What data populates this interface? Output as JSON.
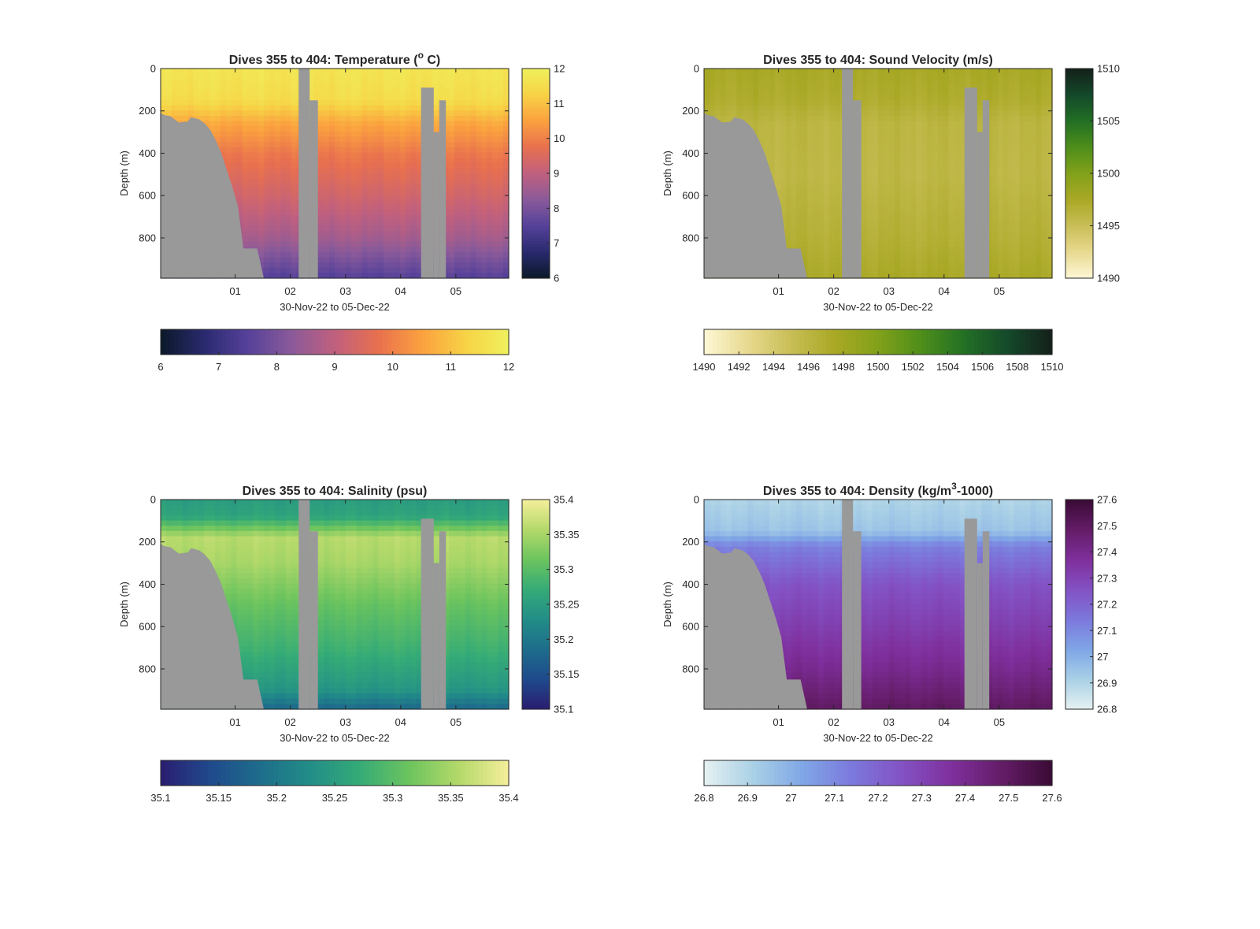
{
  "chart_data": [
    {
      "type": "heatmap",
      "title": "Dives 355 to 404: Temperature (",
      "title_unit": "o",
      "title_suffix": " C)",
      "title_unit_style": "superscript",
      "xlabel": "30-Nov-22 to 05-Dec-22",
      "ylabel": "Depth (m)",
      "xticklabels": [
        "01",
        "02",
        "03",
        "04",
        "05"
      ],
      "xlim": [
        "30-Nov-22 15:36",
        "05-Dec-22 23:00"
      ],
      "xticks": [
        "01-Dec-22",
        "02-Dec-22",
        "03-Dec-22",
        "04-Dec-22",
        "05-Dec-22"
      ],
      "yticks": [
        0,
        200,
        400,
        600,
        800
      ],
      "ylim": [
        0,
        990
      ],
      "y_reversed": true,
      "colormap": [
        "#0b1928",
        "#2a2a6f",
        "#55419a",
        "#8a5a9a",
        "#c0607e",
        "#e8704f",
        "#fba13f",
        "#f7d245",
        "#eff15d"
      ],
      "clim": [
        6,
        12
      ],
      "right_colorbar_ticks": [
        "6",
        "7",
        "8",
        "9",
        "10",
        "11",
        "12"
      ],
      "bottom_colorbar_ticks": [
        "6",
        "7",
        "8",
        "9",
        "10",
        "11",
        "12"
      ],
      "field": {
        "surface_layer": {
          "depth": [
            0,
            150
          ],
          "value": 11.7
        },
        "gradient": [
          [
            0,
            11.7
          ],
          [
            150,
            11.5
          ],
          [
            260,
            10.6
          ],
          [
            400,
            9.9
          ],
          [
            600,
            9.3
          ],
          [
            800,
            8.6
          ],
          [
            990,
            7.5
          ]
        ]
      },
      "no_data_color": "#999999"
    },
    {
      "type": "heatmap",
      "title": "Dives 355 to 404: Sound Velocity (m/s)",
      "xlabel": "30-Nov-22 to 05-Dec-22",
      "ylabel": "Depth (m)",
      "xticklabels": [
        "01",
        "02",
        "03",
        "04",
        "05"
      ],
      "xlim": [
        "30-Nov-22 15:36",
        "05-Dec-22 23:00"
      ],
      "xticks": [
        "01-Dec-22",
        "02-Dec-22",
        "03-Dec-22",
        "04-Dec-22",
        "05-Dec-22"
      ],
      "yticks": [
        0,
        200,
        400,
        600,
        800
      ],
      "ylim": [
        0,
        990
      ],
      "y_reversed": true,
      "colormap": [
        "#fdf8d6",
        "#e8d98f",
        "#c8be56",
        "#a9a825",
        "#82a11a",
        "#4d8e1a",
        "#226f25",
        "#14482a",
        "#14201a"
      ],
      "clim": [
        1490,
        1510
      ],
      "right_colorbar_ticks": [
        "1490",
        "1495",
        "1500",
        "1505",
        "1510"
      ],
      "bottom_colorbar_ticks": [
        "1490",
        "1492",
        "1494",
        "1496",
        "1498",
        "1500",
        "1502",
        "1504",
        "1506",
        "1508",
        "1510"
      ],
      "field": {
        "gradient": [
          [
            0,
            1497.5
          ],
          [
            150,
            1497.0
          ],
          [
            260,
            1496.0
          ],
          [
            500,
            1495.8
          ],
          [
            800,
            1496.6
          ],
          [
            990,
            1497.4
          ]
        ]
      },
      "no_data_color": "#999999"
    },
    {
      "type": "heatmap",
      "title": "Dives 355 to 404: Salinity (psu)",
      "xlabel": "30-Nov-22 to 05-Dec-22",
      "ylabel": "Depth (m)",
      "xticklabels": [
        "01",
        "02",
        "03",
        "04",
        "05"
      ],
      "xlim": [
        "30-Nov-22 15:36",
        "05-Dec-22 23:00"
      ],
      "xticks": [
        "01-Dec-22",
        "02-Dec-22",
        "03-Dec-22",
        "04-Dec-22",
        "05-Dec-22"
      ],
      "yticks": [
        0,
        200,
        400,
        600,
        800
      ],
      "ylim": [
        0,
        990
      ],
      "y_reversed": true,
      "colormap": [
        "#2a1d70",
        "#1f4a8c",
        "#1e6d8b",
        "#228d88",
        "#35ab77",
        "#6cc45e",
        "#b4d96a",
        "#f5ef9a"
      ],
      "clim": [
        35.1,
        35.4
      ],
      "right_colorbar_ticks": [
        "35.1",
        "35.15",
        "35.2",
        "35.25",
        "35.3",
        "35.35",
        "35.4"
      ],
      "bottom_colorbar_ticks": [
        "35.1",
        "35.15",
        "35.2",
        "35.25",
        "35.3",
        "35.35",
        "35.4"
      ],
      "field": {
        "gradient": [
          [
            0,
            35.25
          ],
          [
            80,
            35.26
          ],
          [
            180,
            35.36
          ],
          [
            300,
            35.35
          ],
          [
            500,
            35.31
          ],
          [
            700,
            35.28
          ],
          [
            900,
            35.24
          ],
          [
            990,
            35.18
          ]
        ]
      },
      "no_data_color": "#999999"
    },
    {
      "type": "heatmap",
      "title": "Dives 355 to 404: Density (kg/m",
      "title_unit": "3",
      "title_suffix": "-1000)",
      "title_unit_style": "superscript",
      "xlabel": "30-Nov-22 to 05-Dec-22",
      "ylabel": "Depth (m)",
      "xticklabels": [
        "01",
        "02",
        "03",
        "04",
        "05"
      ],
      "xlim": [
        "30-Nov-22 15:36",
        "05-Dec-22 23:00"
      ],
      "xticks": [
        "01-Dec-22",
        "02-Dec-22",
        "03-Dec-22",
        "04-Dec-22",
        "05-Dec-22"
      ],
      "yticks": [
        0,
        200,
        400,
        600,
        800
      ],
      "ylim": [
        0,
        990
      ],
      "y_reversed": true,
      "colormap": [
        "#e6f1f2",
        "#a9d0e6",
        "#7fa6e6",
        "#7c78dc",
        "#8351c3",
        "#7f2f9c",
        "#631c66",
        "#3a0b35"
      ],
      "clim": [
        26.8,
        27.6
      ],
      "right_colorbar_ticks": [
        "26.8",
        "26.9",
        "27",
        "27.1",
        "27.2",
        "27.3",
        "27.4",
        "27.5",
        "27.6"
      ],
      "bottom_colorbar_ticks": [
        "26.8",
        "26.9",
        "27",
        "27.1",
        "27.2",
        "27.3",
        "27.4",
        "27.5",
        "27.6"
      ],
      "field": {
        "gradient": [
          [
            0,
            26.9
          ],
          [
            150,
            26.95
          ],
          [
            220,
            27.12
          ],
          [
            400,
            27.25
          ],
          [
            600,
            27.32
          ],
          [
            800,
            27.4
          ],
          [
            990,
            27.5
          ]
        ]
      },
      "no_data_color": "#999999"
    }
  ],
  "no_data_regions": {
    "description_units": "x in days since 30-Nov-22 00:00, depth in m",
    "seafloor_left": [
      [
        0.65,
        210
      ],
      [
        0.72,
        220
      ],
      [
        0.83,
        225
      ],
      [
        0.98,
        255
      ],
      [
        1.14,
        250
      ],
      [
        1.2,
        230
      ],
      [
        1.35,
        240
      ],
      [
        1.45,
        260
      ],
      [
        1.55,
        290
      ],
      [
        1.65,
        340
      ],
      [
        1.75,
        400
      ],
      [
        1.85,
        480
      ],
      [
        1.95,
        560
      ],
      [
        2.05,
        650
      ],
      [
        2.15,
        850
      ],
      [
        2.35,
        850
      ],
      [
        2.4,
        850
      ],
      [
        2.52,
        990
      ]
    ],
    "gaps": [
      {
        "x0": 3.15,
        "x1": 3.35,
        "depth0": 0,
        "depth1": 990
      },
      {
        "x0": 3.35,
        "x1": 3.5,
        "depth0": 150,
        "depth1": 990
      },
      {
        "x0": 5.37,
        "x1": 5.6,
        "depth0": 90,
        "depth1": 990
      },
      {
        "x0": 5.6,
        "x1": 5.7,
        "depth0": 300,
        "depth1": 990
      },
      {
        "x0": 5.7,
        "x1": 5.82,
        "depth0": 150,
        "depth1": 990
      }
    ]
  }
}
